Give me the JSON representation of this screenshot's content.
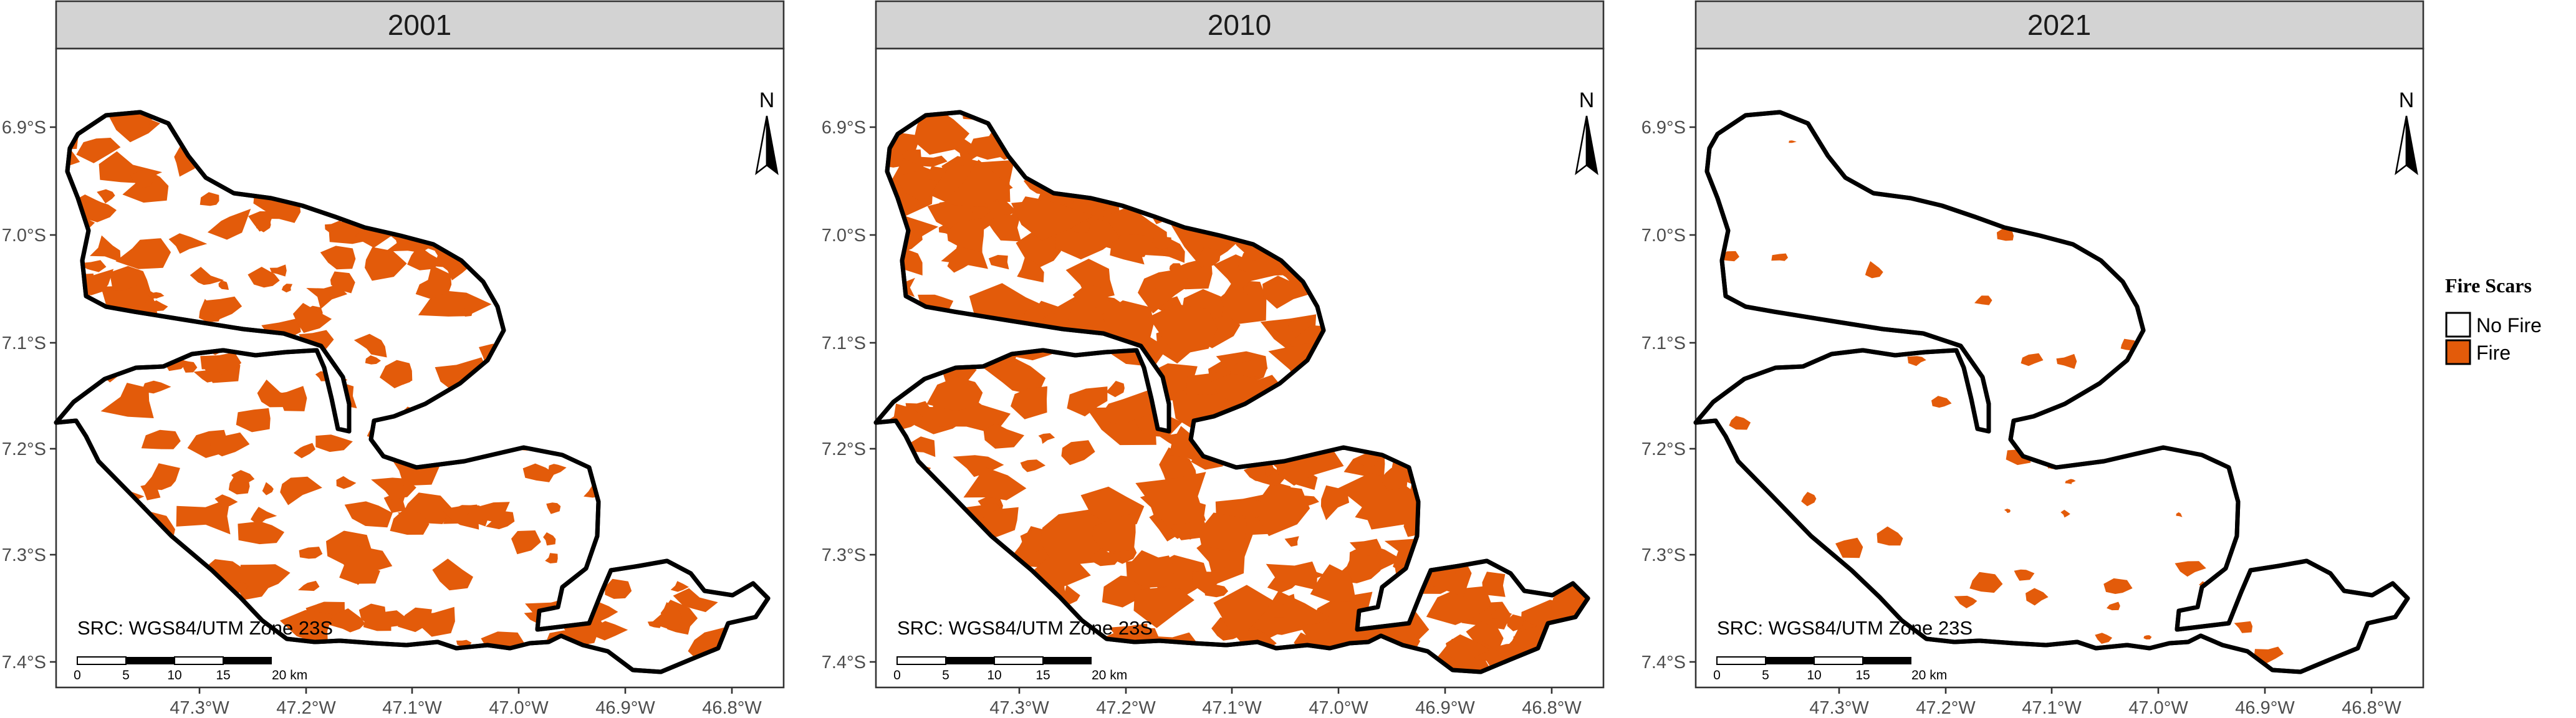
{
  "panels": [
    {
      "year": "2001",
      "fire_level": "high"
    },
    {
      "year": "2010",
      "fire_level": "very-high"
    },
    {
      "year": "2021",
      "fire_level": "low"
    }
  ],
  "axes": {
    "lat_labels": [
      "6.9°S",
      "7.0°S",
      "7.1°S",
      "7.2°S",
      "7.3°S",
      "7.4°S"
    ],
    "lon_labels": [
      "47.3°W",
      "47.2°W",
      "47.1°W",
      "47.0°W",
      "46.9°W",
      "46.8°W"
    ]
  },
  "north_arrow": {
    "label": "N"
  },
  "crs_text": "SRC: WGS84/UTM Zone 23S",
  "scale_bar": {
    "labels": [
      "0",
      "5",
      "10",
      "15",
      "20 km"
    ]
  },
  "legend": {
    "title": "Fire Scars",
    "items": [
      {
        "label": "No Fire",
        "color": "#ffffff"
      },
      {
        "label": "Fire",
        "color": "#e35b0a"
      }
    ]
  },
  "colors": {
    "fire": "#e35b0a",
    "strip": "#d3d3d3",
    "boundary": "#000000"
  }
}
